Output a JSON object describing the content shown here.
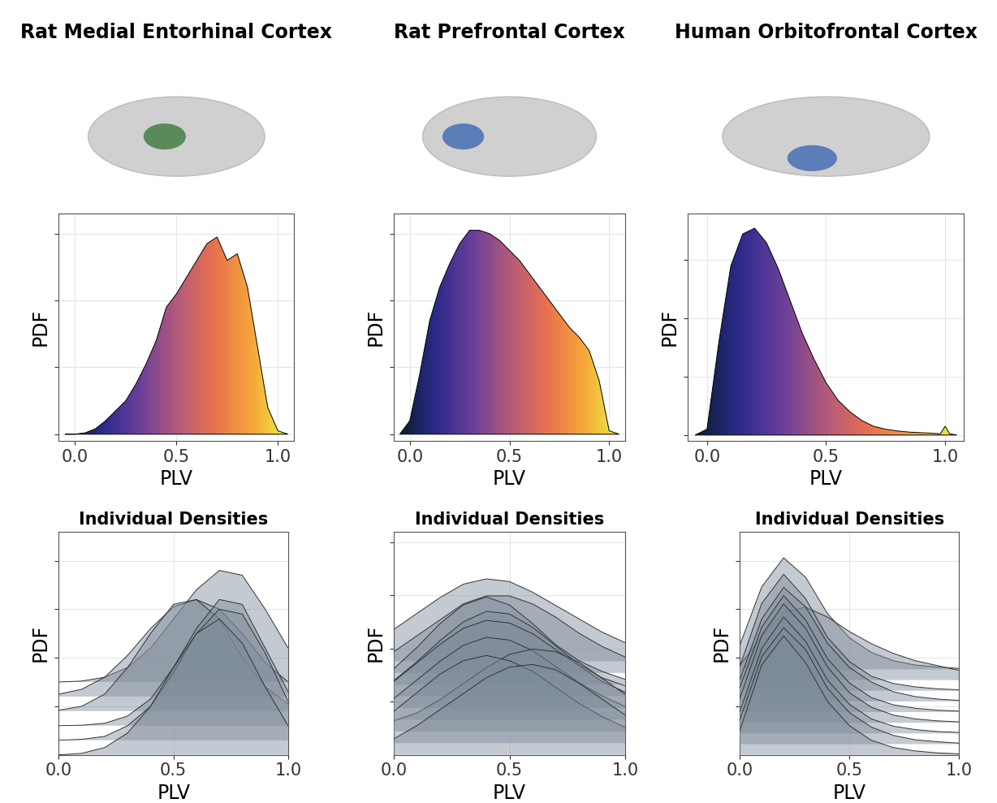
{
  "chart_data": [
    {
      "type": "area",
      "title": "Rat Medial Entorhinal Cortex",
      "x_label": "PLV",
      "y_label": "PDF",
      "x": [
        -0.05,
        0.0,
        0.05,
        0.1,
        0.15,
        0.2,
        0.25,
        0.3,
        0.35,
        0.4,
        0.45,
        0.5,
        0.55,
        0.6,
        0.65,
        0.7,
        0.75,
        0.8,
        0.85,
        0.9,
        0.95,
        1.0,
        1.05
      ],
      "values": [
        0,
        0,
        0.02,
        0.08,
        0.2,
        0.35,
        0.5,
        0.75,
        1.05,
        1.4,
        1.9,
        2.1,
        2.35,
        2.6,
        2.85,
        2.95,
        2.6,
        2.7,
        2.2,
        1.3,
        0.4,
        0.05,
        0
      ],
      "xlim": [
        -0.08,
        1.08
      ],
      "ylim": [
        -0.1,
        3.3
      ],
      "xticks": [
        {
          "value": 0,
          "label": "0.0"
        },
        {
          "value": 0.5,
          "label": "0.5"
        },
        {
          "value": 1,
          "label": "1.0"
        }
      ],
      "yticks": [
        0,
        1,
        2,
        3
      ],
      "grid": true,
      "tick_labels": "x"
    },
    {
      "type": "area",
      "title": "Rat Prefrontal Cortex",
      "x_label": "PLV",
      "y_label": "PDF",
      "x": [
        -0.05,
        0.0,
        0.05,
        0.1,
        0.15,
        0.2,
        0.25,
        0.3,
        0.35,
        0.4,
        0.45,
        0.5,
        0.55,
        0.6,
        0.65,
        0.7,
        0.75,
        0.8,
        0.85,
        0.9,
        0.95,
        1.0,
        1.05
      ],
      "values": [
        0,
        0.2,
        0.9,
        1.7,
        2.2,
        2.55,
        2.85,
        3.05,
        3.05,
        3.0,
        2.9,
        2.75,
        2.6,
        2.4,
        2.2,
        2.0,
        1.8,
        1.6,
        1.45,
        1.25,
        0.8,
        0.05,
        0
      ],
      "xlim": [
        -0.08,
        1.08
      ],
      "ylim": [
        -0.1,
        3.3
      ],
      "xticks": [
        {
          "value": 0,
          "label": "0.0"
        },
        {
          "value": 0.5,
          "label": "0.5"
        },
        {
          "value": 1,
          "label": "1.0"
        }
      ],
      "yticks": [
        0,
        1,
        2,
        3
      ],
      "grid": true,
      "tick_labels": "x"
    },
    {
      "type": "area",
      "title": "Human Orbitofrontal Cortex",
      "x_label": "PLV",
      "y_label": "PDF",
      "x": [
        -0.05,
        0.0,
        0.05,
        0.1,
        0.15,
        0.2,
        0.25,
        0.3,
        0.35,
        0.4,
        0.45,
        0.5,
        0.55,
        0.6,
        0.65,
        0.7,
        0.75,
        0.8,
        0.85,
        0.9,
        0.95,
        0.98,
        1.0,
        1.02,
        1.05
      ],
      "values": [
        0,
        0.1,
        1.6,
        2.9,
        3.45,
        3.55,
        3.3,
        2.85,
        2.3,
        1.75,
        1.3,
        0.9,
        0.6,
        0.4,
        0.25,
        0.15,
        0.1,
        0.07,
        0.05,
        0.04,
        0.03,
        0.02,
        0.15,
        0.02,
        0
      ],
      "xlim": [
        -0.08,
        1.08
      ],
      "ylim": [
        -0.1,
        3.8
      ],
      "xticks": [
        {
          "value": 0,
          "label": "0.0"
        },
        {
          "value": 0.5,
          "label": "0.5"
        },
        {
          "value": 1,
          "label": "1.0"
        }
      ],
      "yticks": [
        0,
        1,
        2,
        3
      ],
      "grid": true,
      "tick_labels": "x"
    },
    {
      "type": "ridgeline",
      "title": "Individual Densities",
      "x_label": "PLV",
      "y_label": "PDF",
      "x": [
        0.0,
        0.1,
        0.2,
        0.3,
        0.4,
        0.5,
        0.6,
        0.7,
        0.8,
        0.9,
        1.0
      ],
      "series": [
        {
          "values": [
            0.0,
            0.02,
            0.1,
            0.3,
            0.7,
            1.3,
            1.9,
            2.3,
            2.2,
            1.5,
            0.7
          ]
        },
        {
          "values": [
            0.05,
            0.15,
            0.4,
            0.85,
            1.4,
            1.85,
            2.0,
            1.8,
            1.3,
            0.7,
            0.3
          ]
        },
        {
          "values": [
            0.02,
            0.1,
            0.35,
            0.9,
            1.6,
            2.2,
            2.3,
            1.9,
            1.1,
            0.5,
            0.15
          ]
        },
        {
          "values": [
            0.0,
            0.01,
            0.05,
            0.2,
            0.55,
            1.2,
            2.0,
            2.6,
            2.5,
            1.6,
            0.7
          ]
        },
        {
          "values": [
            0.0,
            0.02,
            0.08,
            0.3,
            0.7,
            1.4,
            2.2,
            2.7,
            2.6,
            1.8,
            0.8
          ]
        },
        {
          "values": [
            0.0,
            0.03,
            0.15,
            0.45,
            1.0,
            1.8,
            2.5,
            2.8,
            2.3,
            1.4,
            0.6
          ]
        }
      ],
      "xlim": [
        0,
        1
      ],
      "ylim": [
        0,
        4.6
      ],
      "xticks": [
        {
          "value": 0,
          "label": "0.0"
        },
        {
          "value": 0.5,
          "label": "0.5"
        },
        {
          "value": 1,
          "label": "1.0"
        }
      ],
      "yticks": [
        1,
        2,
        3,
        4
      ],
      "grid": true,
      "tick_labels": "x"
    },
    {
      "type": "ridgeline",
      "title": "Individual Densities",
      "x_label": "PLV",
      "y_label": "PDF",
      "x": [
        0.0,
        0.1,
        0.2,
        0.3,
        0.4,
        0.5,
        0.6,
        0.7,
        0.8,
        0.9,
        1.0
      ],
      "series": [
        {
          "values": [
            0.6,
            0.9,
            1.2,
            1.45,
            1.55,
            1.5,
            1.3,
            1.05,
            0.8,
            0.55,
            0.35
          ]
        },
        {
          "values": [
            0.4,
            0.7,
            1.0,
            1.3,
            1.45,
            1.45,
            1.3,
            1.05,
            0.75,
            0.5,
            0.3
          ]
        },
        {
          "values": [
            0.3,
            0.7,
            1.15,
            1.5,
            1.65,
            1.5,
            1.15,
            0.75,
            0.45,
            0.25,
            0.1
          ]
        },
        {
          "values": [
            0.3,
            0.65,
            1.05,
            1.4,
            1.6,
            1.55,
            1.3,
            0.95,
            0.6,
            0.35,
            0.2
          ]
        },
        {
          "values": [
            0.5,
            0.85,
            1.2,
            1.5,
            1.65,
            1.6,
            1.4,
            1.1,
            0.8,
            0.5,
            0.3
          ]
        },
        {
          "values": [
            0.4,
            0.75,
            1.1,
            1.4,
            1.55,
            1.5,
            1.3,
            1.0,
            0.7,
            0.45,
            0.25
          ]
        },
        {
          "values": [
            0.2,
            0.35,
            0.6,
            0.9,
            1.2,
            1.45,
            1.55,
            1.5,
            1.3,
            1.0,
            0.7
          ]
        },
        {
          "values": [
            0.6,
            0.95,
            1.3,
            1.55,
            1.65,
            1.55,
            1.35,
            1.05,
            0.75,
            0.5,
            0.3
          ]
        },
        {
          "values": [
            0.3,
            0.55,
            0.85,
            1.15,
            1.45,
            1.65,
            1.7,
            1.6,
            1.35,
            1.05,
            0.75
          ]
        }
      ],
      "xlim": [
        0,
        1
      ],
      "ylim": [
        0,
        4.2
      ],
      "xticks": [
        {
          "value": 0,
          "label": "0.0"
        },
        {
          "value": 0.5,
          "label": "0.5"
        },
        {
          "value": 1,
          "label": "1.0"
        }
      ],
      "yticks": [
        1,
        2,
        3,
        4
      ],
      "grid": true,
      "tick_labels": "x"
    },
    {
      "type": "ridgeline",
      "title": "Individual Densities",
      "x_label": "PLV",
      "y_label": "PDF",
      "x": [
        0.0,
        0.1,
        0.2,
        0.3,
        0.4,
        0.5,
        0.6,
        0.7,
        0.8,
        0.9,
        1.0
      ],
      "series": [
        {
          "values": [
            0.5,
            1.7,
            2.3,
            1.9,
            1.15,
            0.65,
            0.35,
            0.18,
            0.09,
            0.05,
            0.02
          ]
        },
        {
          "values": [
            0.3,
            0.9,
            1.4,
            1.5,
            1.3,
            1.0,
            0.75,
            0.55,
            0.4,
            0.3,
            0.2
          ]
        },
        {
          "values": [
            0.5,
            1.8,
            2.4,
            1.9,
            1.1,
            0.6,
            0.3,
            0.15,
            0.08,
            0.04,
            0.02
          ]
        },
        {
          "values": [
            0.45,
            1.7,
            2.35,
            1.95,
            1.2,
            0.7,
            0.4,
            0.2,
            0.1,
            0.05,
            0.02
          ]
        },
        {
          "values": [
            0.5,
            1.75,
            2.4,
            1.9,
            1.1,
            0.6,
            0.3,
            0.15,
            0.08,
            0.04,
            0.02
          ]
        },
        {
          "values": [
            0.5,
            1.8,
            2.45,
            1.95,
            1.15,
            0.62,
            0.32,
            0.16,
            0.08,
            0.04,
            0.02
          ]
        },
        {
          "values": [
            0.45,
            1.75,
            2.4,
            1.9,
            1.1,
            0.6,
            0.3,
            0.15,
            0.08,
            0.04,
            0.02
          ]
        },
        {
          "values": [
            0.5,
            1.8,
            2.4,
            1.95,
            1.15,
            0.65,
            0.35,
            0.18,
            0.09,
            0.05,
            0.02
          ]
        },
        {
          "values": [
            0.5,
            1.85,
            2.45,
            1.9,
            1.1,
            0.6,
            0.3,
            0.15,
            0.08,
            0.04,
            0.02
          ]
        }
      ],
      "xlim": [
        0,
        1
      ],
      "ylim": [
        0,
        4.6
      ],
      "xticks": [
        {
          "value": 0,
          "label": "0.0"
        },
        {
          "value": 0.5,
          "label": "0.5"
        },
        {
          "value": 1,
          "label": "1.0"
        }
      ],
      "yticks": [
        1,
        2,
        3,
        4
      ],
      "grid": true,
      "tick_labels": "x"
    }
  ]
}
